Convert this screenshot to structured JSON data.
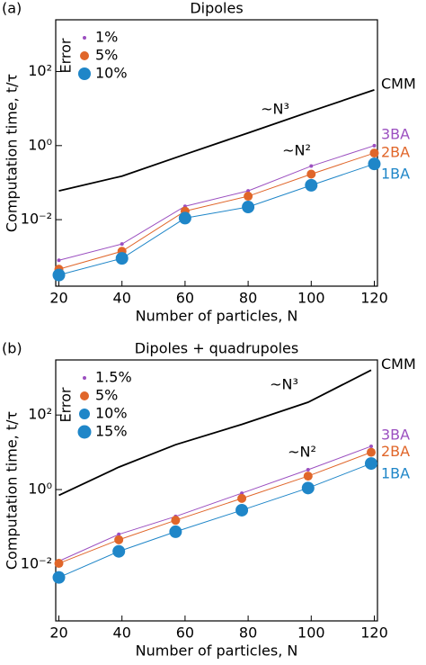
{
  "chart_data": [
    {
      "type": "line",
      "panel": "(a)",
      "title": "Dipoles",
      "x_label": "Number of particles, N",
      "y_label": "Computation time, t/τ",
      "log_y": true,
      "xlim": [
        19,
        121
      ],
      "ylim": [
        0.00016,
        2500
      ],
      "xticks": [
        20,
        40,
        60,
        80,
        100,
        120
      ],
      "yticks": [
        {
          "value": 0.01,
          "label": "10⁻²"
        },
        {
          "value": 1,
          "label": "10⁰"
        },
        {
          "value": 100,
          "label": "10²"
        }
      ],
      "annotations": [
        "~N³",
        "~N²"
      ],
      "legend": {
        "title": "Error",
        "entries": [
          {
            "label": "1%",
            "color": "#9b4fc0"
          },
          {
            "label": "5%",
            "color": "#e0662a"
          },
          {
            "label": "10%",
            "color": "#1f86c8"
          }
        ]
      },
      "x": [
        20,
        40,
        60,
        80,
        100,
        120
      ],
      "series": [
        {
          "name": "CMM",
          "color": "#000000",
          "values": [
            0.06,
            0.15,
            0.58,
            2.2,
            8.5,
            32
          ]
        },
        {
          "name": "3BA",
          "color": "#9b4fc0",
          "values": [
            0.0008,
            0.0022,
            0.023,
            0.06,
            0.28,
            1.0
          ]
        },
        {
          "name": "2BA",
          "color": "#e0662a",
          "values": [
            0.00046,
            0.0014,
            0.017,
            0.043,
            0.17,
            0.63
          ]
        },
        {
          "name": "1BA",
          "color": "#1f86c8",
          "values": [
            0.00032,
            0.0009,
            0.011,
            0.022,
            0.085,
            0.32
          ]
        }
      ]
    },
    {
      "type": "line",
      "panel": "(b)",
      "title": "Dipoles + quadrupoles",
      "x_label": "Number of particles, N",
      "y_label": "Computation time, t/τ",
      "log_y": true,
      "xlim": [
        19,
        121
      ],
      "ylim": [
        0.0003,
        3000
      ],
      "xticks": [
        20,
        40,
        60,
        80,
        100,
        120
      ],
      "yticks": [
        {
          "value": 0.01,
          "label": "10⁻²"
        },
        {
          "value": 1,
          "label": "10⁰"
        },
        {
          "value": 100,
          "label": "10²"
        }
      ],
      "annotations": [
        "~N³",
        "~N²"
      ],
      "legend": {
        "title": "Error",
        "entries": [
          {
            "label": "1.5%",
            "color": "#9b4fc0"
          },
          {
            "label": "5%",
            "color": "#e0662a"
          },
          {
            "label": "10%",
            "color": "#1f86c8"
          },
          {
            "label": "15%",
            "color": "#1f86c8"
          }
        ]
      },
      "x": [
        20,
        39,
        57,
        78,
        99,
        119
      ],
      "series": [
        {
          "name": "CMM",
          "color": "#000000",
          "values": [
            0.7,
            4,
            16,
            56,
            220,
            1600
          ]
        },
        {
          "name": "3BA",
          "color": "#9b4fc0",
          "values": [
            0.012,
            0.063,
            0.19,
            0.8,
            3.4,
            14.5
          ]
        },
        {
          "name": "2BA",
          "color": "#e0662a",
          "values": [
            0.0105,
            0.045,
            0.15,
            0.58,
            2.3,
            10
          ]
        },
        {
          "name": "1BA",
          "color": "#1f86c8",
          "values": [
            0.0044,
            0.022,
            0.074,
            0.28,
            1.1,
            5
          ]
        }
      ]
    }
  ]
}
